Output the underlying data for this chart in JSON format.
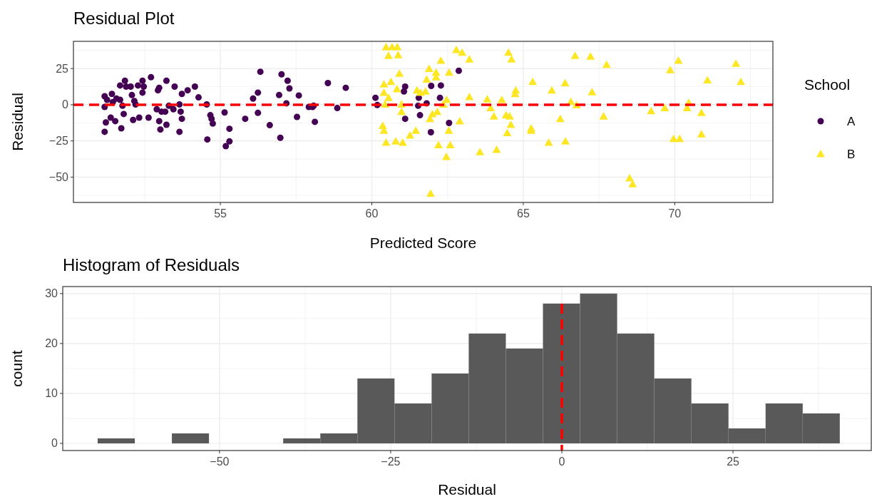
{
  "chart_data": [
    {
      "type": "scatter",
      "title": "Residual Plot",
      "xlabel": "Predicted Score",
      "ylabel": "Residual",
      "legend_title": "School",
      "legend": "right",
      "grid": true,
      "xlim": [
        50.15,
        73.24
      ],
      "ylim": [
        -67.5,
        43.8
      ],
      "xticks": [
        55,
        60,
        65,
        70
      ],
      "yticks": [
        {
          "value": -50,
          "label": "−50"
        },
        {
          "value": -25,
          "label": "−25"
        },
        0,
        25
      ],
      "ref_lines": [
        {
          "axis": "y",
          "value": 0,
          "color": "#ff0000",
          "line_style": "dashed"
        }
      ],
      "series": [
        {
          "name": "A",
          "color": "#440154",
          "marker": "circle",
          "x": [
            51.18,
            51.18,
            51.18,
            51.22,
            51.26,
            51.42,
            51.38,
            51.53,
            51.45,
            51.57,
            51.69,
            51.69,
            51.85,
            51.89,
            51.77,
            51.81,
            51.73,
            52.04,
            52.08,
            52.16,
            52.2,
            52.12,
            52.32,
            52.28,
            52.43,
            52.43,
            52.47,
            52.71,
            52.63,
            52.94,
            52.98,
            52.9,
            53.06,
            52.98,
            53.02,
            53.22,
            53.22,
            53.18,
            53.3,
            53.49,
            53.45,
            53.65,
            53.69,
            53.73,
            53.65,
            53.73,
            53.92,
            54.16,
            54.28,
            54.55,
            54.67,
            54.71,
            54.75,
            54.57,
            55.14,
            55.3,
            55.3,
            55.18,
            55.82,
            56.08,
            56.24,
            56.24,
            56.32,
            56.63,
            56.98,
            56.94,
            57.02,
            57.22,
            57.28,
            57.18,
            57.59,
            57.53,
            57.92,
            58.04,
            58.08,
            58.12,
            58.55,
            58.86,
            59.14,
            60.12,
            60.18,
            61.1,
            61.06,
            61.1,
            61.55,
            61.53,
            61.59,
            61.81,
            61.96,
            61.95,
            62.28,
            62.25,
            62.55,
            62.87
          ],
          "values": [
            5.9,
            -1.5,
            -18.7,
            -12.2,
            3.4,
            7.5,
            -8.9,
            -11.3,
            1.8,
            4.3,
            3.4,
            13.3,
            16.6,
            12.5,
            -0.7,
            -6.4,
            -16.3,
            12.5,
            6.7,
            2.6,
            0.2,
            -10.5,
            -8.9,
            13.3,
            16.6,
            8.4,
            12.5,
            19,
            -8.9,
            10,
            11.7,
            -3.1,
            -4.8,
            -11.3,
            -17.1,
            16.6,
            -13.8,
            -4.8,
            -0.7,
            12.5,
            -3.1,
            0.2,
            -4.8,
            -9.7,
            -18.7,
            7.5,
            10,
            12.5,
            5.1,
            0.2,
            -7.2,
            -9.7,
            -13,
            -24,
            -5.3,
            -16.6,
            -25.3,
            -28.6,
            -9.7,
            4.3,
            8.4,
            -5.6,
            22.8,
            -14.1,
            -22.8,
            6.7,
            21,
            16.6,
            11.3,
            1,
            6.4,
            -8.4,
            -1.5,
            -1.5,
            -0.7,
            -11.8,
            15,
            -2.3,
            11.7,
            4.8,
            -0.2,
            12.5,
            9.2,
            -9.7,
            4.8,
            -0.7,
            -7.2,
            1,
            13,
            -19,
            13.3,
            4.8,
            -12.6,
            23.5
          ]
        },
        {
          "name": "B",
          "color": "#fde725",
          "marker": "triangle",
          "x": [
            60.47,
            60.67,
            60.84,
            60.55,
            60.87,
            60.91,
            60.4,
            60.63,
            60.83,
            60.4,
            60.55,
            60.44,
            60.36,
            60.4,
            60.47,
            60.79,
            61.02,
            61.26,
            61.45,
            60.98,
            60.98,
            61.89,
            62.12,
            62.28,
            62.55,
            61.81,
            62.12,
            61.49,
            61.77,
            61.61,
            62,
            62.16,
            61.92,
            62.36,
            62.47,
            62.79,
            62.98,
            63.22,
            62.9,
            62.2,
            62.59,
            62.46,
            62.54,
            61.94,
            63.22,
            63.81,
            63.92,
            64.03,
            64.29,
            64.43,
            64.55,
            64.59,
            64.47,
            63.57,
            64.12,
            64.51,
            64.61,
            64.75,
            64.73,
            65.31,
            65.26,
            65.26,
            65.84,
            65.94,
            66.22,
            66.38,
            66.39,
            66.71,
            67.22,
            67.75,
            67.27,
            66.57,
            66.76,
            67.65,
            68.51,
            68.61,
            69.22,
            69.67,
            69.85,
            70.12,
            70.46,
            70.41,
            70.88,
            71.08,
            70.88,
            69.96,
            70.16,
            72.02,
            72.18
          ],
          "values": [
            39.9,
            39.9,
            39.9,
            33.8,
            34.3,
            21.5,
            14.1,
            15.8,
            10.8,
            8.4,
            4.8,
            0.2,
            -14.6,
            -17.9,
            -26.1,
            -25.3,
            -26.1,
            -21.2,
            -17.9,
            0.2,
            -4.8,
            24.8,
            22.3,
            30.5,
            22.3,
            17.4,
            19,
            10,
            9.2,
            8.4,
            -6.4,
            -4.8,
            -9.7,
            0.2,
            3.4,
            37.9,
            36,
            31.4,
            -11.3,
            -27.8,
            -27.8,
            -36,
            -17.9,
            -61.4,
            5.4,
            3.8,
            -2.3,
            -8,
            3.4,
            -7.2,
            -8,
            -13.8,
            -19.5,
            -32.7,
            -31,
            36,
            31.4,
            10,
            7.5,
            15.8,
            -16.3,
            -17.9,
            -26.1,
            10,
            -9.7,
            15,
            -25.3,
            33.8,
            33.3,
            27.7,
            8.7,
            2.1,
            -0.3,
            -8,
            -50.7,
            -54.8,
            -4.4,
            -2.3,
            24,
            30.5,
            1.5,
            -2.3,
            -5.6,
            16.9,
            -20.4,
            -23.6,
            -23.6,
            28.4,
            15.8
          ]
        }
      ]
    },
    {
      "type": "histogram",
      "title": "Histogram of Residuals",
      "xlabel": "Residual",
      "ylabel": "count",
      "grid": true,
      "color": "#595959",
      "xlim": [
        -72.9,
        45.2
      ],
      "ylim": [
        -1.43,
        31.4
      ],
      "xticks": [
        {
          "value": -50,
          "label": "−50"
        },
        {
          "value": -25,
          "label": "−25"
        },
        0,
        25
      ],
      "yticks": [
        0,
        10,
        20,
        30
      ],
      "ref_lines": [
        {
          "axis": "x",
          "value": 0,
          "color": "#ff0000",
          "line_style": "dashed"
        }
      ],
      "bins": [
        -67.8,
        -62.38,
        -56.96,
        -51.54,
        -46.12,
        -40.7,
        -35.28,
        -29.86,
        -24.44,
        -19.02,
        -13.6,
        -8.18,
        -2.76,
        2.66,
        8.08,
        13.5,
        18.92,
        24.34,
        29.76,
        35.18,
        40.6
      ],
      "values": [
        1,
        0,
        2,
        0,
        0,
        1,
        2,
        13,
        8,
        14,
        22,
        19,
        28,
        30,
        22,
        13,
        8,
        3,
        8,
        6
      ]
    }
  ]
}
